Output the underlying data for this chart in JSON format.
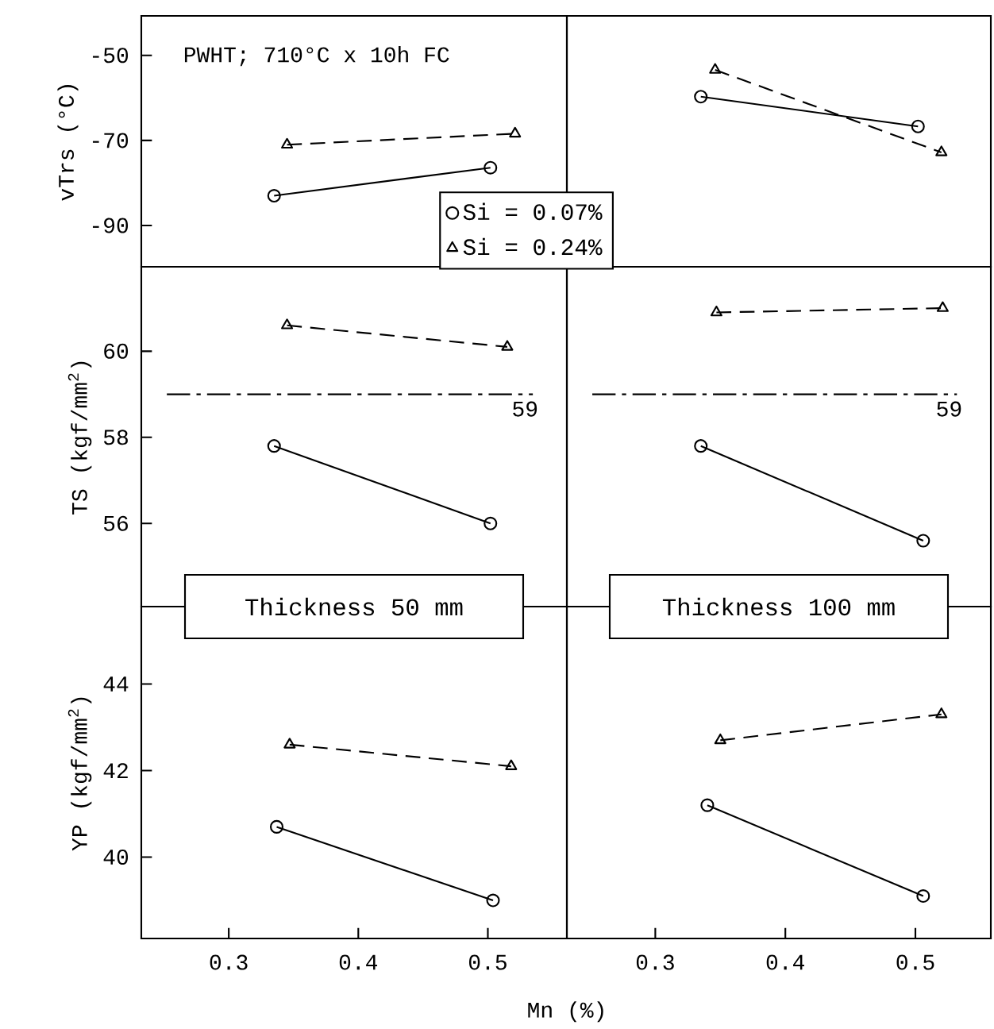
{
  "chart_data": [
    {
      "type": "line",
      "ylabel": "vTrs (°C)",
      "xlim": [
        0.2325,
        0.561
      ],
      "ylim": [
        -99.7,
        -40.7
      ],
      "yticks": [
        -50,
        -70,
        -90
      ],
      "tick_labels": "y",
      "legend": "bottom right",
      "annotations": [
        "PWHT; 710°C x 10h FC"
      ],
      "series": [
        {
          "name": "Si = 0.07%",
          "color": "#000000",
          "marker": "circle",
          "line_style": "solid",
          "x": [
            0.335,
            0.502
          ],
          "values": [
            -83,
            -76.4
          ]
        },
        {
          "name": "Si = 0.24%",
          "color": "#000000",
          "marker": "triangle",
          "line_style": "dashed",
          "x": [
            0.345,
            0.521
          ],
          "values": [
            -71,
            -68.4
          ]
        }
      ]
    },
    {
      "type": "line",
      "xlim": [
        0.232,
        0.558
      ],
      "ylim": [
        -99.7,
        -40.7
      ],
      "tick_labels": false,
      "series": [
        {
          "color": "#000000",
          "marker": "circle",
          "line_style": "solid",
          "x": [
            0.335,
            0.502
          ],
          "values": [
            -59.7,
            -66.7
          ]
        },
        {
          "color": "#000000",
          "marker": "triangle",
          "line_style": "dashed",
          "x": [
            0.346,
            0.52
          ],
          "values": [
            -53.4,
            -72.8
          ]
        }
      ]
    },
    {
      "type": "line",
      "ylabel": "TS (kgf/mm$^{2}$)",
      "xlim": [
        0.2325,
        0.561
      ],
      "ylim": [
        54.07,
        61.96
      ],
      "yticks": [
        56,
        58,
        60
      ],
      "tick_labels": "y",
      "ref_lines": [
        {
          "axis": "y",
          "value": 59,
          "label": "59",
          "line_style": "dashdot"
        }
      ],
      "series": [
        {
          "color": "#000000",
          "marker": "circle",
          "line_style": "solid",
          "x": [
            0.335,
            0.502
          ],
          "values": [
            57.8,
            56.0
          ]
        },
        {
          "color": "#000000",
          "marker": "triangle",
          "line_style": "dashed",
          "x": [
            0.345,
            0.515
          ],
          "values": [
            60.6,
            60.1
          ]
        }
      ]
    },
    {
      "type": "line",
      "xlim": [
        0.232,
        0.558
      ],
      "ylim": [
        54.07,
        61.96
      ],
      "tick_labels": false,
      "ref_lines": [
        {
          "axis": "y",
          "value": 59,
          "label": "59",
          "line_style": "dashdot"
        }
      ],
      "series": [
        {
          "color": "#000000",
          "marker": "circle",
          "line_style": "solid",
          "x": [
            0.335,
            0.506
          ],
          "values": [
            57.8,
            55.6
          ]
        },
        {
          "color": "#000000",
          "marker": "triangle",
          "line_style": "dashed",
          "x": [
            0.347,
            0.521
          ],
          "values": [
            60.9,
            61.0
          ]
        }
      ]
    },
    {
      "type": "line",
      "ylabel": "YP (kgf/mm$^{2}$)",
      "xlabel": "Mn (%)",
      "xlim": [
        0.2325,
        0.561
      ],
      "ylim": [
        38.12,
        45.79
      ],
      "xticks": [
        0.3,
        0.4,
        0.5
      ],
      "yticks": [
        40,
        42,
        44
      ],
      "annotations": [
        "Thickness 50 mm"
      ],
      "series": [
        {
          "color": "#000000",
          "marker": "circle",
          "line_style": "solid",
          "x": [
            0.337,
            0.504
          ],
          "values": [
            40.7,
            39.0
          ]
        },
        {
          "color": "#000000",
          "marker": "triangle",
          "line_style": "dashed",
          "x": [
            0.347,
            0.518
          ],
          "values": [
            42.6,
            42.1
          ]
        }
      ]
    },
    {
      "type": "line",
      "xlim": [
        0.232,
        0.558
      ],
      "ylim": [
        38.12,
        45.79
      ],
      "xticks": [
        0.3,
        0.4,
        0.5
      ],
      "tick_labels": "x",
      "annotations": [
        "Thickness 100 mm"
      ],
      "series": [
        {
          "color": "#000000",
          "marker": "circle",
          "line_style": "solid",
          "x": [
            0.34,
            0.506
          ],
          "values": [
            41.2,
            39.1
          ]
        },
        {
          "color": "#000000",
          "marker": "triangle",
          "line_style": "dashed",
          "x": [
            0.35,
            0.52
          ],
          "values": [
            42.7,
            43.3
          ]
        }
      ]
    }
  ]
}
